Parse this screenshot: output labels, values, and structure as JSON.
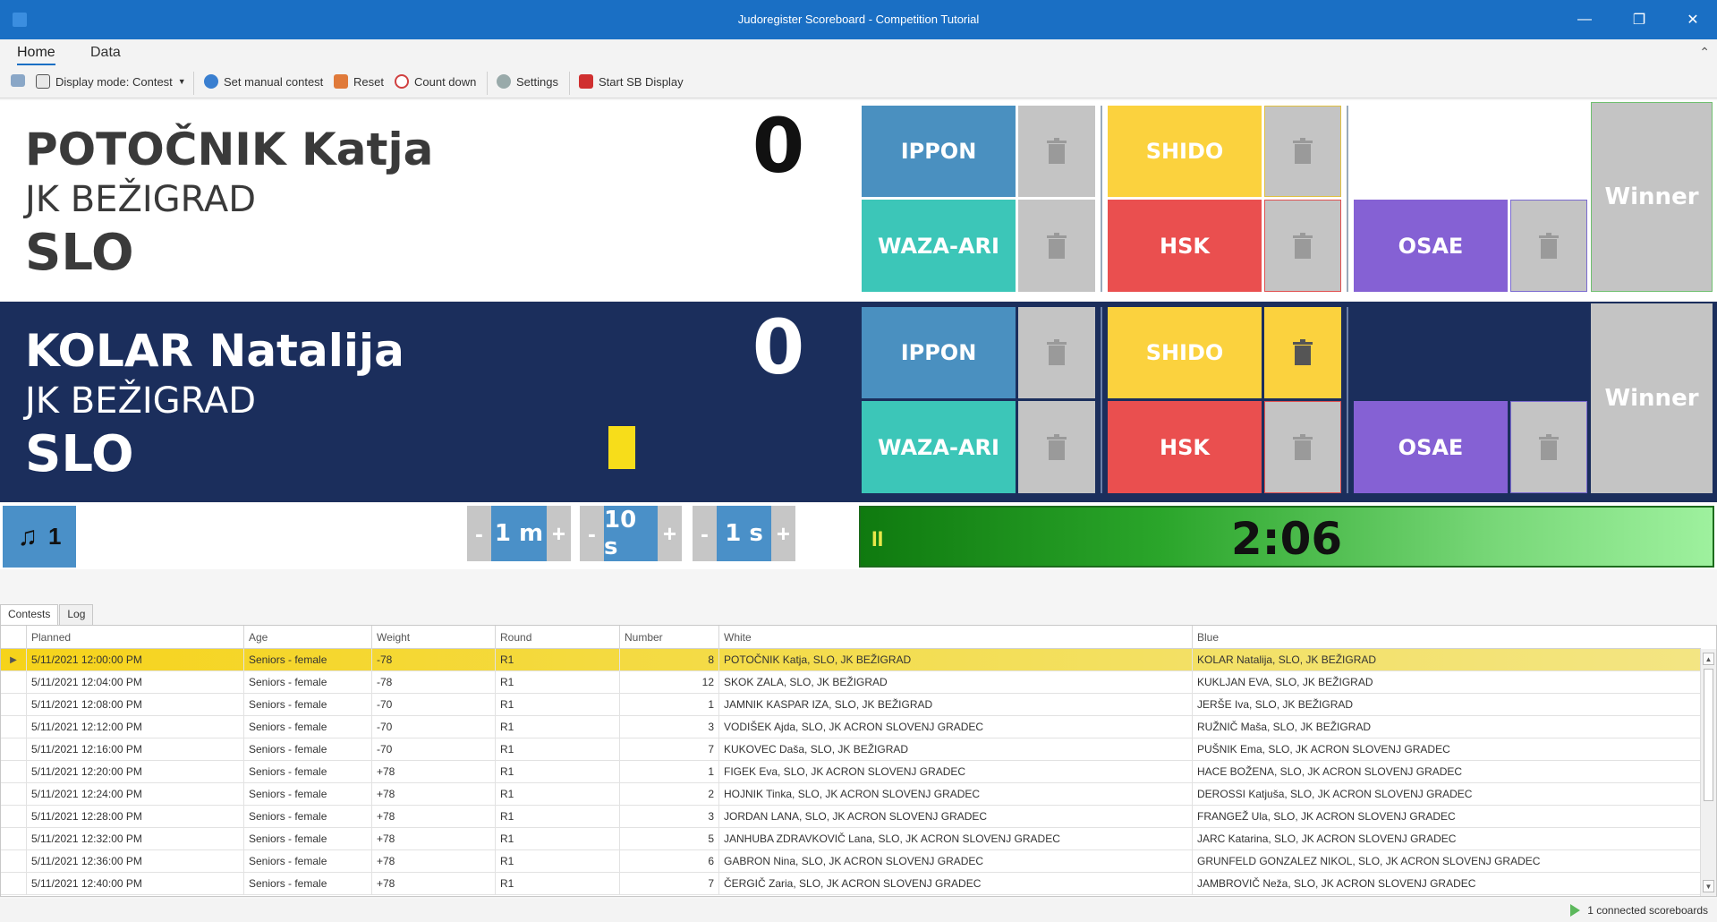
{
  "window": {
    "title": "Judoregister Scoreboard - Competition Tutorial"
  },
  "ribbon": {
    "tabs": [
      "Home",
      "Data"
    ]
  },
  "toolbar": {
    "display_mode": "Display mode: Contest",
    "set_manual": "Set manual contest",
    "reset": "Reset",
    "count_down": "Count down",
    "settings": "Settings",
    "start_sb": "Start SB Display"
  },
  "white": {
    "name": "POTOČNIK Katja",
    "club": "JK BEŽIGRAD",
    "country": "SLO",
    "score": "0"
  },
  "blue": {
    "name": "KOLAR Natalija",
    "club": "JK BEŽIGRAD",
    "country": "SLO",
    "score": "0"
  },
  "buttons": {
    "ippon": "IPPON",
    "waza_ari": "WAZA-ARI",
    "shido": "SHIDO",
    "hsk": "HSK",
    "osae": "OSAE",
    "winner": "Winner"
  },
  "colors": {
    "ippon": "#4a90c0",
    "waza_ari": "#3cc6b8",
    "shido": "#fbd23e",
    "hsk": "#ea4f4f",
    "osae": "#8561d4",
    "blue_panel": "#1b2e5c"
  },
  "controls": {
    "music_count": "1",
    "step_minutes": "1 m",
    "step_10s": "10 s",
    "step_1s": "1 s",
    "minus": "-",
    "plus": "+",
    "timer": "2:06",
    "pause_glyph": "II"
  },
  "grid": {
    "tabs": [
      "Contests",
      "Log"
    ],
    "columns": [
      "Planned",
      "Age",
      "Weight",
      "Round",
      "Number",
      "White",
      "Blue"
    ],
    "rows": [
      [
        "5/11/2021 12:00:00 PM",
        "Seniors - female",
        "-78",
        "R1",
        "8",
        "POTOČNIK Katja, SLO, JK BEŽIGRAD",
        "KOLAR Natalija, SLO, JK BEŽIGRAD"
      ],
      [
        "5/11/2021 12:04:00 PM",
        "Seniors - female",
        "-78",
        "R1",
        "12",
        "SKOK ZALA, SLO, JK BEŽIGRAD",
        "KUKLJAN EVA, SLO, JK BEŽIGRAD"
      ],
      [
        "5/11/2021 12:08:00 PM",
        "Seniors - female",
        "-70",
        "R1",
        "1",
        "JAMNIK KASPAR IZA, SLO, JK BEŽIGRAD",
        "JERŠE Iva, SLO, JK BEŽIGRAD"
      ],
      [
        "5/11/2021 12:12:00 PM",
        "Seniors - female",
        "-70",
        "R1",
        "3",
        "VODIŠEK Ajda, SLO, JK ACRON SLOVENJ GRADEC",
        "RUŽNIČ Maša, SLO, JK BEŽIGRAD"
      ],
      [
        "5/11/2021 12:16:00 PM",
        "Seniors - female",
        "-70",
        "R1",
        "7",
        "KUKOVEC Daša, SLO, JK BEŽIGRAD",
        "PUŠNIK Ema, SLO, JK ACRON SLOVENJ GRADEC"
      ],
      [
        "5/11/2021 12:20:00 PM",
        "Seniors - female",
        "+78",
        "R1",
        "1",
        "FIGEK Eva, SLO, JK ACRON SLOVENJ GRADEC",
        "HACE BOŽENA, SLO, JK ACRON SLOVENJ GRADEC"
      ],
      [
        "5/11/2021 12:24:00 PM",
        "Seniors - female",
        "+78",
        "R1",
        "2",
        "HOJNIK Tinka, SLO, JK ACRON SLOVENJ GRADEC",
        "DEROSSI Katjuša, SLO, JK ACRON SLOVENJ GRADEC"
      ],
      [
        "5/11/2021 12:28:00 PM",
        "Seniors - female",
        "+78",
        "R1",
        "3",
        "JORDAN LANA, SLO, JK ACRON SLOVENJ GRADEC",
        "FRANGEŽ Ula, SLO, JK ACRON SLOVENJ GRADEC"
      ],
      [
        "5/11/2021 12:32:00 PM",
        "Seniors - female",
        "+78",
        "R1",
        "5",
        "JANHUBA ZDRAVKOVIČ Lana, SLO, JK ACRON SLOVENJ GRADEC",
        "JARC Katarina, SLO, JK ACRON SLOVENJ GRADEC"
      ],
      [
        "5/11/2021 12:36:00 PM",
        "Seniors - female",
        "+78",
        "R1",
        "6",
        "GABRON Nina, SLO, JK ACRON SLOVENJ GRADEC",
        "GRUNFELD GONZALEZ NIKOL, SLO, JK ACRON SLOVENJ GRADEC"
      ],
      [
        "5/11/2021 12:40:00 PM",
        "Seniors - female",
        "+78",
        "R1",
        "7",
        "ČERGIČ Zaria, SLO, JK ACRON SLOVENJ GRADEC",
        "JAMBROVIČ Neža, SLO, JK ACRON SLOVENJ GRADEC"
      ]
    ]
  },
  "status": {
    "connected": "1 connected scoreboards"
  }
}
